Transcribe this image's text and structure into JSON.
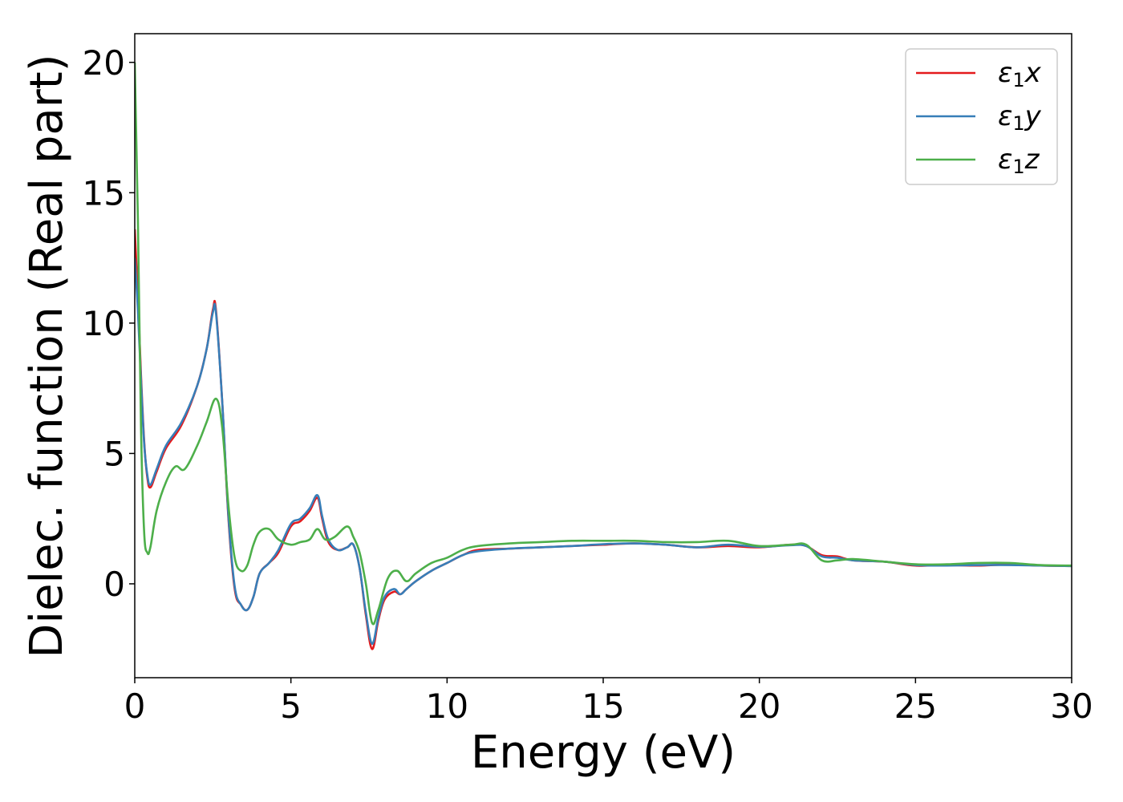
{
  "chart_data": {
    "type": "line",
    "title": "",
    "xlabel": "Energy (eV)",
    "ylabel": "Dielec. function (Real part)",
    "xlim": [
      0,
      30
    ],
    "ylim": [
      -3.6,
      21.1
    ],
    "xticks": [
      0,
      5,
      10,
      15,
      20,
      25,
      30
    ],
    "yticks": [
      0,
      5,
      10,
      15,
      20
    ],
    "grid": false,
    "legend_position": "top-right",
    "series": [
      {
        "name": "ε1x",
        "legend": {
          "main": "ε",
          "sub": "1",
          "suffix": "x"
        },
        "color": "#e41a1c",
        "x": [
          0,
          0.1,
          0.2,
          0.3,
          0.4,
          0.5,
          0.7,
          1.0,
          1.5,
          2.0,
          2.3,
          2.5,
          2.6,
          2.8,
          3.0,
          3.2,
          3.4,
          3.6,
          3.8,
          4.0,
          4.3,
          4.6,
          5.0,
          5.3,
          5.6,
          5.85,
          6.0,
          6.2,
          6.5,
          6.8,
          7.0,
          7.2,
          7.4,
          7.6,
          7.8,
          8.0,
          8.3,
          8.5,
          8.7,
          9.0,
          9.5,
          10.0,
          10.5,
          11.0,
          12.0,
          13.0,
          14.0,
          15.0,
          16.0,
          17.0,
          18.0,
          19.0,
          20.0,
          21.0,
          21.5,
          22.0,
          22.5,
          23.0,
          24.0,
          25.0,
          26.0,
          27.0,
          28.0,
          29.0,
          30.0
        ],
        "y": [
          13.6,
          11.0,
          8.0,
          5.5,
          4.1,
          3.7,
          4.3,
          5.2,
          6.1,
          7.6,
          9.0,
          10.5,
          10.5,
          7.0,
          2.5,
          -0.2,
          -0.8,
          -1.0,
          -0.5,
          0.4,
          0.8,
          1.2,
          2.2,
          2.4,
          2.8,
          3.3,
          2.5,
          1.6,
          1.3,
          1.4,
          1.5,
          0.6,
          -1.2,
          -2.5,
          -1.4,
          -0.6,
          -0.3,
          -0.4,
          -0.2,
          0.1,
          0.5,
          0.8,
          1.1,
          1.3,
          1.35,
          1.4,
          1.45,
          1.5,
          1.55,
          1.5,
          1.4,
          1.45,
          1.4,
          1.5,
          1.45,
          1.1,
          1.05,
          0.9,
          0.85,
          0.7,
          0.72,
          0.7,
          0.74,
          0.7,
          0.68
        ]
      },
      {
        "name": "ε1y",
        "legend": {
          "main": "ε",
          "sub": "1",
          "suffix": "y"
        },
        "color": "#377eb8",
        "x": [
          0,
          0.1,
          0.2,
          0.3,
          0.4,
          0.5,
          0.7,
          1.0,
          1.5,
          2.0,
          2.3,
          2.5,
          2.6,
          2.8,
          3.0,
          3.2,
          3.4,
          3.6,
          3.8,
          4.0,
          4.3,
          4.6,
          5.0,
          5.3,
          5.6,
          5.85,
          6.0,
          6.2,
          6.5,
          6.8,
          7.0,
          7.2,
          7.4,
          7.6,
          7.8,
          8.0,
          8.3,
          8.5,
          8.7,
          9.0,
          9.5,
          10.0,
          10.5,
          11.0,
          12.0,
          13.0,
          14.0,
          15.0,
          16.0,
          17.0,
          18.0,
          19.0,
          20.0,
          21.0,
          21.5,
          22.0,
          22.5,
          23.0,
          24.0,
          25.0,
          26.0,
          27.0,
          28.0,
          29.0,
          30.0
        ],
        "y": [
          12.5,
          10.5,
          7.8,
          5.4,
          4.2,
          3.8,
          4.4,
          5.3,
          6.2,
          7.6,
          9.0,
          10.4,
          10.4,
          7.0,
          2.6,
          -0.1,
          -0.8,
          -1.0,
          -0.5,
          0.4,
          0.8,
          1.3,
          2.3,
          2.5,
          2.9,
          3.4,
          2.6,
          1.7,
          1.3,
          1.4,
          1.5,
          0.6,
          -1.1,
          -2.3,
          -1.3,
          -0.5,
          -0.2,
          -0.4,
          -0.2,
          0.1,
          0.5,
          0.8,
          1.1,
          1.25,
          1.35,
          1.4,
          1.45,
          1.52,
          1.55,
          1.5,
          1.4,
          1.5,
          1.42,
          1.48,
          1.45,
          1.05,
          1.0,
          0.9,
          0.85,
          0.72,
          0.7,
          0.72,
          0.72,
          0.7,
          0.68
        ]
      },
      {
        "name": "ε1z",
        "legend": {
          "main": "ε",
          "sub": "1",
          "suffix": "z"
        },
        "color": "#4daf4a",
        "x": [
          0,
          0.1,
          0.2,
          0.3,
          0.4,
          0.5,
          0.7,
          1.0,
          1.3,
          1.6,
          2.0,
          2.3,
          2.6,
          2.8,
          3.0,
          3.2,
          3.4,
          3.6,
          3.8,
          4.0,
          4.3,
          4.6,
          5.0,
          5.3,
          5.6,
          5.85,
          6.1,
          6.4,
          6.8,
          7.0,
          7.2,
          7.4,
          7.6,
          7.8,
          8.1,
          8.4,
          8.7,
          9.0,
          9.5,
          10.0,
          10.5,
          11.0,
          12.0,
          13.0,
          14.0,
          15.0,
          16.0,
          17.0,
          18.0,
          19.0,
          20.0,
          21.0,
          21.5,
          22.0,
          22.5,
          23.0,
          24.0,
          25.0,
          26.0,
          27.0,
          28.0,
          29.0,
          30.0
        ],
        "y": [
          20.0,
          14.0,
          6.0,
          2.0,
          1.2,
          1.4,
          2.8,
          3.9,
          4.5,
          4.4,
          5.3,
          6.2,
          7.1,
          6.0,
          3.0,
          1.0,
          0.5,
          0.7,
          1.5,
          2.0,
          2.1,
          1.7,
          1.5,
          1.6,
          1.7,
          2.1,
          1.7,
          1.8,
          2.2,
          1.8,
          1.2,
          0.0,
          -1.5,
          -1.0,
          0.2,
          0.5,
          0.1,
          0.4,
          0.8,
          1.0,
          1.3,
          1.45,
          1.55,
          1.6,
          1.65,
          1.65,
          1.65,
          1.6,
          1.6,
          1.65,
          1.45,
          1.5,
          1.5,
          0.9,
          0.9,
          0.95,
          0.85,
          0.75,
          0.75,
          0.8,
          0.8,
          0.72,
          0.7
        ]
      }
    ]
  }
}
